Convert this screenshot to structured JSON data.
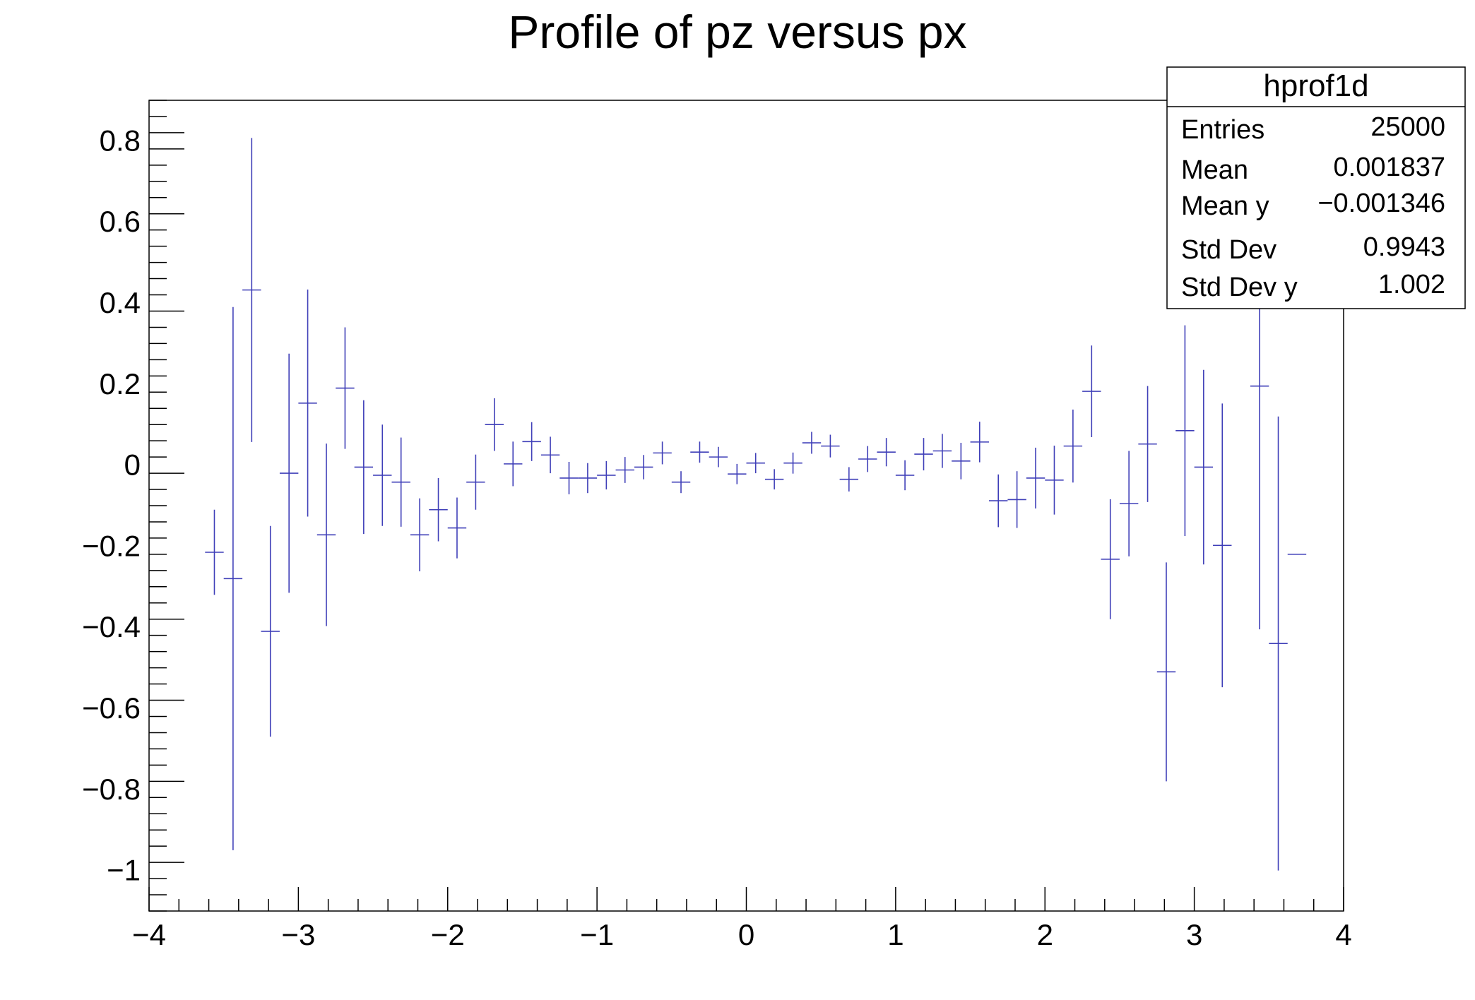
{
  "chart_data": {
    "type": "scatter",
    "title": "Profile of pz versus px",
    "xlabel": "",
    "ylabel": "",
    "xlim": [
      -4,
      4
    ],
    "ylim": [
      -1.1,
      0.9
    ],
    "x_major_ticks": [
      -4,
      -3,
      -2,
      -1,
      0,
      1,
      2,
      3,
      4
    ],
    "x_tick_labels": [
      "−4",
      "−3",
      "−2",
      "−1",
      "0",
      "1",
      "2",
      "3",
      "4"
    ],
    "y_major_ticks": [
      -1,
      -0.8,
      -0.6,
      -0.4,
      -0.2,
      0,
      0.2,
      0.4,
      0.6,
      0.8
    ],
    "y_tick_labels": [
      "−1",
      "−0.8",
      "−0.6",
      "−0.4",
      "−0.2",
      "0",
      "0.2",
      "0.4",
      "0.6",
      "0.8"
    ],
    "bin_width": 0.125,
    "grid": false,
    "legend": "none",
    "marker_color": "#3f3fb8",
    "series": [
      {
        "points": [
          {
            "x": -3.5625,
            "y": -0.215,
            "err": 0.105
          },
          {
            "x": -3.4375,
            "y": -0.28,
            "err": 0.67
          },
          {
            "x": -3.3125,
            "y": 0.432,
            "err": 0.375
          },
          {
            "x": -3.1875,
            "y": -0.41,
            "err": 0.26
          },
          {
            "x": -3.0625,
            "y": -0.02,
            "err": 0.295
          },
          {
            "x": -2.9375,
            "y": 0.153,
            "err": 0.28
          },
          {
            "x": -2.8125,
            "y": -0.172,
            "err": 0.225
          },
          {
            "x": -2.6875,
            "y": 0.19,
            "err": 0.15
          },
          {
            "x": -2.5625,
            "y": -0.005,
            "err": 0.165
          },
          {
            "x": -2.4375,
            "y": -0.025,
            "err": 0.125
          },
          {
            "x": -2.3125,
            "y": -0.042,
            "err": 0.11
          },
          {
            "x": -2.1875,
            "y": -0.172,
            "err": 0.09
          },
          {
            "x": -2.0625,
            "y": -0.11,
            "err": 0.078
          },
          {
            "x": -1.9375,
            "y": -0.155,
            "err": 0.075
          },
          {
            "x": -1.8125,
            "y": -0.042,
            "err": 0.068
          },
          {
            "x": -1.6875,
            "y": 0.1,
            "err": 0.065
          },
          {
            "x": -1.5625,
            "y": 0.003,
            "err": 0.055
          },
          {
            "x": -1.4375,
            "y": 0.058,
            "err": 0.048
          },
          {
            "x": -1.3125,
            "y": 0.025,
            "err": 0.045
          },
          {
            "x": -1.1875,
            "y": -0.032,
            "err": 0.04
          },
          {
            "x": -1.0625,
            "y": -0.032,
            "err": 0.037
          },
          {
            "x": -0.9375,
            "y": -0.025,
            "err": 0.035
          },
          {
            "x": -0.8125,
            "y": -0.012,
            "err": 0.032
          },
          {
            "x": -0.6875,
            "y": -0.005,
            "err": 0.03
          },
          {
            "x": -0.5625,
            "y": 0.03,
            "err": 0.028
          },
          {
            "x": -0.4375,
            "y": -0.042,
            "err": 0.027
          },
          {
            "x": -0.3125,
            "y": 0.032,
            "err": 0.026
          },
          {
            "x": -0.1875,
            "y": 0.02,
            "err": 0.025
          },
          {
            "x": -0.0625,
            "y": -0.022,
            "err": 0.025
          },
          {
            "x": 0.0625,
            "y": 0.005,
            "err": 0.025
          },
          {
            "x": 0.1875,
            "y": -0.035,
            "err": 0.025
          },
          {
            "x": 0.3125,
            "y": 0.005,
            "err": 0.026
          },
          {
            "x": 0.4375,
            "y": 0.055,
            "err": 0.027
          },
          {
            "x": 0.5625,
            "y": 0.047,
            "err": 0.028
          },
          {
            "x": 0.6875,
            "y": -0.035,
            "err": 0.03
          },
          {
            "x": 0.8125,
            "y": 0.015,
            "err": 0.032
          },
          {
            "x": 0.9375,
            "y": 0.032,
            "err": 0.035
          },
          {
            "x": 1.0625,
            "y": -0.025,
            "err": 0.037
          },
          {
            "x": 1.1875,
            "y": 0.027,
            "err": 0.04
          },
          {
            "x": 1.3125,
            "y": 0.035,
            "err": 0.042
          },
          {
            "x": 1.4375,
            "y": 0.01,
            "err": 0.045
          },
          {
            "x": 1.5625,
            "y": 0.057,
            "err": 0.05
          },
          {
            "x": 1.6875,
            "y": -0.088,
            "err": 0.065
          },
          {
            "x": 1.8125,
            "y": -0.085,
            "err": 0.07
          },
          {
            "x": 1.9375,
            "y": -0.032,
            "err": 0.075
          },
          {
            "x": 2.0625,
            "y": -0.037,
            "err": 0.085
          },
          {
            "x": 2.1875,
            "y": 0.047,
            "err": 0.09
          },
          {
            "x": 2.3125,
            "y": 0.182,
            "err": 0.113
          },
          {
            "x": 2.4375,
            "y": -0.232,
            "err": 0.148
          },
          {
            "x": 2.5625,
            "y": -0.095,
            "err": 0.13
          },
          {
            "x": 2.6875,
            "y": 0.052,
            "err": 0.143
          },
          {
            "x": 2.8125,
            "y": -0.51,
            "err": 0.27
          },
          {
            "x": 2.9375,
            "y": 0.085,
            "err": 0.26
          },
          {
            "x": 3.0625,
            "y": -0.005,
            "err": 0.24
          },
          {
            "x": 3.1875,
            "y": -0.198,
            "err": 0.35
          },
          {
            "x": 3.4375,
            "y": 0.195,
            "err": 0.6
          },
          {
            "x": 3.5625,
            "y": -0.44,
            "err": 0.56
          },
          {
            "x": 3.6875,
            "y": -0.22,
            "err": 0
          }
        ]
      }
    ],
    "stats_box": {
      "title": "hprof1d",
      "rows": [
        {
          "label": "Entries",
          "value": "25000"
        },
        {
          "label": "Mean",
          "value": "0.001837"
        },
        {
          "label": "Mean y",
          "value": "−0.001346"
        },
        {
          "label": "Std Dev",
          "value": "0.9943"
        },
        {
          "label": "Std Dev y",
          "value": "1.002"
        }
      ]
    }
  }
}
